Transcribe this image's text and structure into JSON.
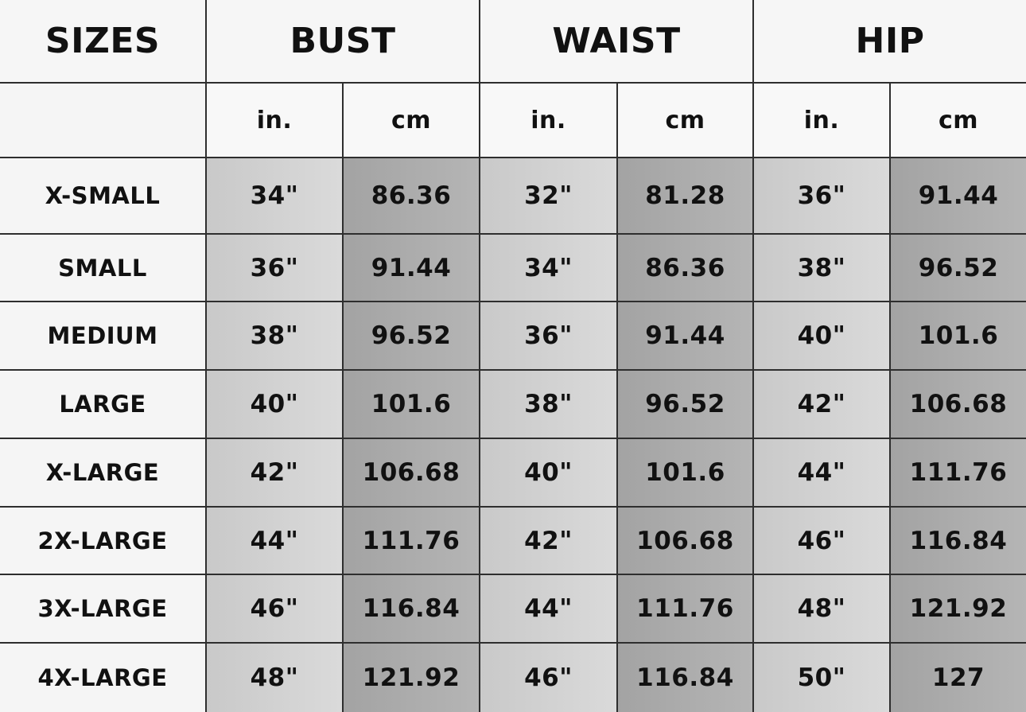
{
  "table": {
    "header": [
      "SIZES",
      "BUST",
      "WAIST",
      "HIP"
    ],
    "units": [
      "in.",
      "cm",
      "in.",
      "cm",
      "in.",
      "cm"
    ],
    "rows": [
      [
        "X-SMALL",
        "34\"",
        "86.36",
        "32\"",
        "81.28",
        "36\"",
        "91.44"
      ],
      [
        "SMALL",
        "36\"",
        "91.44",
        "34\"",
        "86.36",
        "38\"",
        "96.52"
      ],
      [
        "MEDIUM",
        "38\"",
        "96.52",
        "36\"",
        "91.44",
        "40\"",
        "101.6"
      ],
      [
        "LARGE",
        "40\"",
        "101.6",
        "38\"",
        "96.52",
        "42\"",
        "106.68"
      ],
      [
        "X-LARGE",
        "42\"",
        "106.68",
        "40\"",
        "101.6",
        "44\"",
        "111.76"
      ],
      [
        "2X-LARGE",
        "44\"",
        "111.76",
        "42\"",
        "106.68",
        "46\"",
        "116.84"
      ],
      [
        "3X-LARGE",
        "46\"",
        "116.84",
        "44\"",
        "111.76",
        "48\"",
        "121.92"
      ],
      [
        "4X-LARGE",
        "48\"",
        "121.92",
        "46\"",
        "116.84",
        "50\"",
        "127"
      ]
    ]
  }
}
